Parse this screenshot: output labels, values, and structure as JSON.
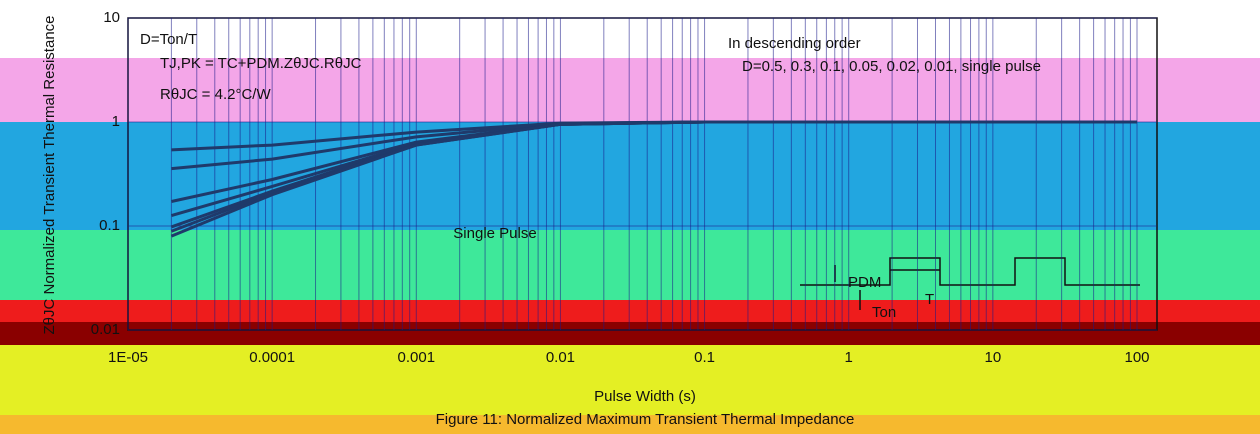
{
  "chart_data": {
    "type": "line",
    "title": "Figure 11: Normalized Maximum Transient Thermal Impedance",
    "x_label": "Pulse Width (s)",
    "y_label": "ZθJC Normalized Transient Thermal Resistance",
    "xscale": "log",
    "yscale": "log",
    "grid": true,
    "xlim": [
      1e-05,
      100
    ],
    "ylim": [
      0.01,
      10
    ],
    "xticks": [
      {
        "value": 1e-05,
        "label": "1E-05"
      },
      0.0001,
      0.001,
      0.01,
      0.1,
      1,
      10,
      100
    ],
    "yticks": [
      10,
      1,
      0.1,
      0.01
    ],
    "x": [
      2e-05,
      0.0001,
      0.001,
      0.01,
      0.1,
      1,
      10,
      100
    ],
    "series": [
      {
        "color": "#1f3a6b",
        "values": [
          0.54,
          0.6,
          0.8,
          0.975,
          1,
          1,
          1,
          1
        ]
      },
      {
        "color": "#1f3a6b",
        "values": [
          0.356,
          0.44,
          0.72,
          0.965,
          1,
          1,
          1,
          1
        ]
      },
      {
        "color": "#1f3a6b",
        "values": [
          0.172,
          0.28,
          0.64,
          0.955,
          1,
          1,
          1,
          1
        ]
      },
      {
        "color": "#1f3a6b",
        "values": [
          0.126,
          0.24,
          0.62,
          0.95,
          1,
          1,
          1,
          1
        ]
      },
      {
        "color": "#1f3a6b",
        "values": [
          0.098,
          0.216,
          0.61,
          0.95,
          1,
          1,
          1,
          1
        ]
      },
      {
        "color": "#1f3a6b",
        "values": [
          0.089,
          0.208,
          0.6,
          0.95,
          1,
          1,
          1,
          1
        ]
      },
      {
        "name": "Single Pulse",
        "color": "#1f3a6b",
        "values": [
          0.08,
          0.2,
          0.6,
          0.95,
          1,
          1,
          1,
          1
        ]
      }
    ],
    "annotations": [
      "D=Ton/T",
      "TJ,PK = TC+PDM.ZθJC.RθJC",
      "RθJC = 4.2°C/W",
      "In descending order",
      "D=0.5, 0.3, 0.1, 0.05, 0.02, 0.01, single pulse",
      "PDM",
      "Ton",
      "T"
    ]
  }
}
